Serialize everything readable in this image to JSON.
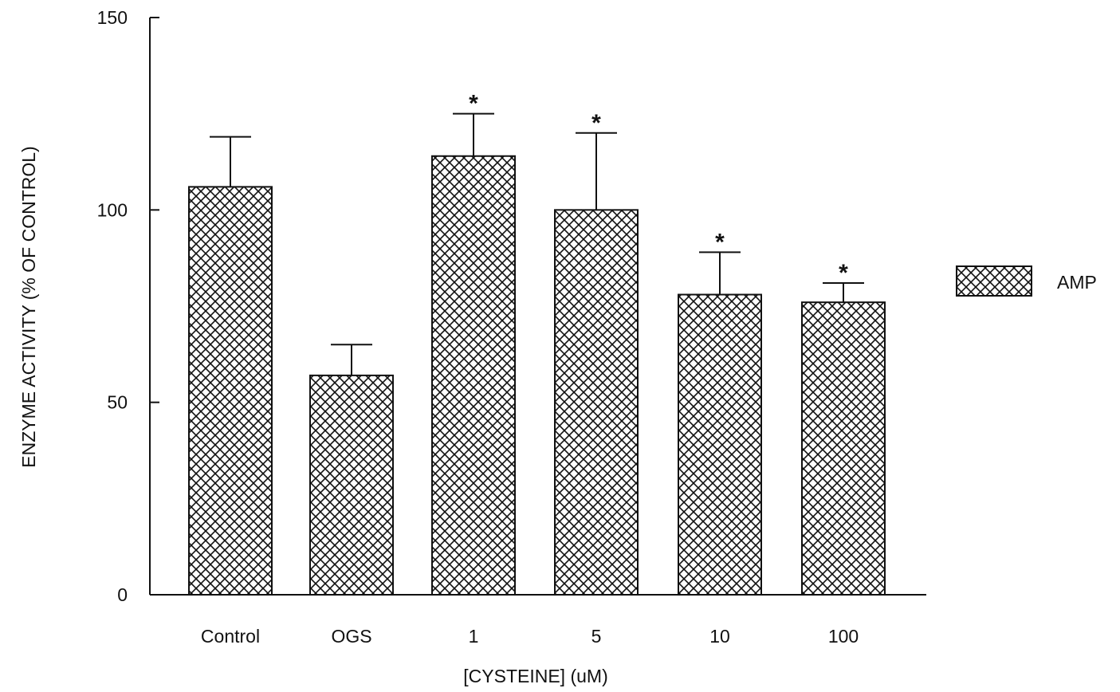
{
  "chart_data": {
    "type": "bar",
    "title": "",
    "xlabel": "[CYSTEINE] (uM)",
    "ylabel": "ENZYME ACTIVITY (% OF CONTROL)",
    "ylim": [
      0,
      150
    ],
    "yticks": [
      0,
      50,
      100,
      150
    ],
    "ytick_labels": [
      "0",
      "50",
      "100",
      "150"
    ],
    "categories": [
      "Control",
      "OGS",
      "1",
      "5",
      "10",
      "100"
    ],
    "series": [
      {
        "name": "AMP",
        "values": [
          106,
          57,
          114,
          100,
          78,
          76
        ],
        "errors": [
          13,
          8,
          11,
          20,
          11,
          5
        ],
        "significance": [
          "",
          "",
          "*",
          "*",
          "*",
          "*"
        ]
      }
    ],
    "fill_pattern": "crosshatch",
    "bar_color": "#ffffff",
    "ink_color": "#111111",
    "grid": false,
    "legend_position": "right"
  }
}
